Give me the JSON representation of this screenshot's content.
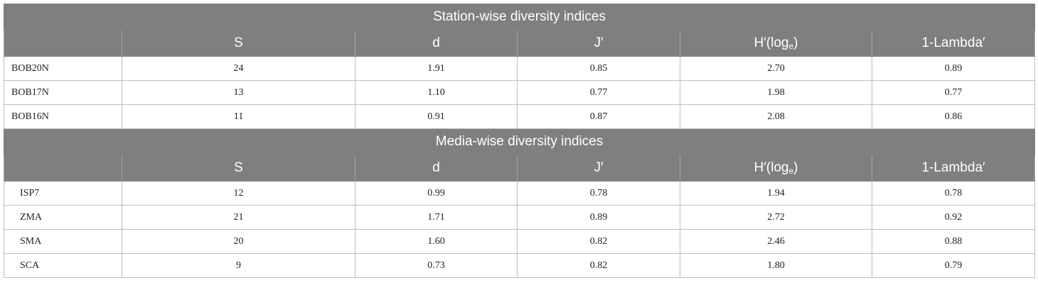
{
  "sections": [
    {
      "title": "Station-wise diversity indices",
      "columns": [
        "",
        "S",
        "d",
        "J′",
        "H′(log",
        "1-Lambda′"
      ],
      "h_subscript": "e",
      "h_suffix": ")",
      "rows": [
        {
          "label": "BOB20N",
          "values": [
            "24",
            "1.91",
            "0.85",
            "2.70",
            "0.89"
          ]
        },
        {
          "label": "BOB17N",
          "values": [
            "13",
            "1.10",
            "0.77",
            "1.98",
            "0.77"
          ]
        },
        {
          "label": "BOB16N",
          "values": [
            "11",
            "0.91",
            "0.87",
            "2.08",
            "0.86"
          ]
        }
      ]
    },
    {
      "title": "Media-wise diversity indices",
      "columns": [
        "",
        "S",
        "d",
        "J′",
        "H′(log",
        "1-Lambda′"
      ],
      "h_subscript": "e",
      "h_suffix": ")",
      "rows": [
        {
          "label": "ISP7",
          "values": [
            "12",
            "0.99",
            "0.78",
            "1.94",
            "0.78"
          ]
        },
        {
          "label": "ZMA",
          "values": [
            "21",
            "1.71",
            "0.89",
            "2.72",
            "0.92"
          ]
        },
        {
          "label": "SMA",
          "values": [
            "20",
            "1.60",
            "0.82",
            "2.46",
            "0.88"
          ]
        },
        {
          "label": "SCA",
          "values": [
            "9",
            "0.73",
            "0.82",
            "1.80",
            "0.79"
          ]
        }
      ]
    }
  ]
}
